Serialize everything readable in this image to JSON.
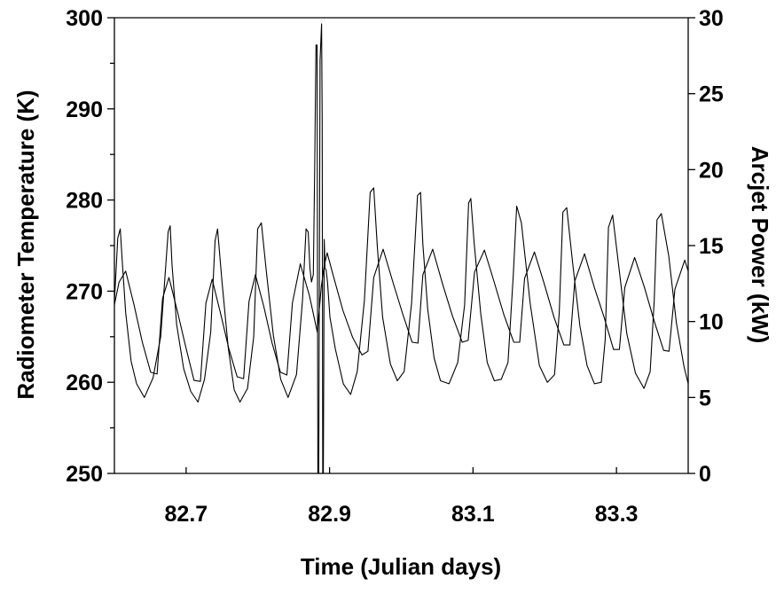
{
  "chart_data": {
    "type": "line",
    "title": "",
    "xlabel": "Time (Julian days)",
    "ylabel_left": "Radiometer Temperature (K)",
    "ylabel_right": "Arcjet Power (kW)",
    "xlim": [
      82.6,
      83.4
    ],
    "ylim_left": [
      250,
      300
    ],
    "ylim_right": [
      0,
      30
    ],
    "x_ticks": [
      82.7,
      82.9,
      83.1,
      83.3
    ],
    "x_tick_labels": [
      "82.7",
      "82.9",
      "83.1",
      "83.3"
    ],
    "y_left_ticks": [
      250,
      260,
      270,
      280,
      290,
      300
    ],
    "y_left_tick_labels": [
      "250",
      "260",
      "270",
      "280",
      "290",
      "300"
    ],
    "y_right_ticks": [
      0,
      5,
      10,
      15,
      20,
      25,
      30
    ],
    "y_right_tick_labels": [
      "0",
      "5",
      "10",
      "15",
      "20",
      "25",
      "30"
    ],
    "grid": false,
    "legend": "none",
    "colors": {
      "line": "#000000",
      "axes": "#000000",
      "background": "#ffffff"
    },
    "series": [
      {
        "axis": "left",
        "x": [
          82.6,
          82.6066,
          82.6157,
          82.6273,
          82.6389,
          82.6506,
          82.6595,
          82.6672,
          82.6761,
          82.6878,
          82.6994,
          82.711,
          82.7199,
          82.7276,
          82.7362,
          82.7479,
          82.7595,
          82.7711,
          82.7801,
          82.7877,
          82.7966,
          82.8083,
          82.8199,
          82.8315,
          82.8405,
          82.8481,
          82.8592,
          82.8719,
          82.8829,
          82.8885,
          82.8925,
          82.8966,
          82.9048,
          82.9185,
          82.9322,
          82.9452,
          82.9535,
          82.9616,
          82.9746,
          82.9883,
          83.002,
          83.0151,
          83.0233,
          83.0301,
          83.0438,
          83.0575,
          83.0712,
          83.0849,
          83.0932,
          83.1021,
          83.1158,
          83.1295,
          83.1431,
          83.1568,
          83.1651,
          83.1719,
          83.1856,
          83.1993,
          83.213,
          83.2267,
          83.235,
          83.2418,
          83.2555,
          83.2692,
          83.2829,
          83.2959,
          83.3041,
          83.3116,
          83.3253,
          83.339,
          83.3527,
          83.3658,
          83.3733,
          83.3815,
          83.3952,
          83.4
        ],
        "y": [
          268.5,
          271,
          272.2,
          268.5,
          264.4,
          261.1,
          260.9,
          269.2,
          271.5,
          267.8,
          263.9,
          260.2,
          260.1,
          268.7,
          271.3,
          267.6,
          263.7,
          260.6,
          260.4,
          268.9,
          271.8,
          268.3,
          264.3,
          261.1,
          260.8,
          268.7,
          273,
          269.5,
          265.5,
          270.5,
          272.8,
          274.2,
          271.8,
          267.9,
          264.9,
          263,
          263.4,
          271.5,
          274.6,
          271,
          267.5,
          264.4,
          264.3,
          271.8,
          274.6,
          270.8,
          267.3,
          264.4,
          264.6,
          272.1,
          274.5,
          271,
          267.4,
          264.4,
          264.4,
          271.4,
          274.3,
          270.8,
          267.1,
          264.1,
          264.1,
          271.1,
          274.1,
          270.4,
          267.1,
          263.6,
          263.6,
          270.4,
          273.7,
          270.4,
          266.7,
          263.5,
          263.4,
          270.2,
          273.4,
          272.2
        ]
      },
      {
        "axis": "right",
        "x": [
          82.6,
          82.6047,
          82.6082,
          82.6107,
          82.6157,
          82.6232,
          82.6309,
          82.6418,
          82.6539,
          82.6645,
          82.6749,
          82.6778,
          82.6804,
          82.6868,
          82.6966,
          82.7065,
          82.7165,
          82.7256,
          82.7343,
          82.7403,
          82.7438,
          82.7498,
          82.7586,
          82.7671,
          82.7751,
          82.7856,
          82.7942,
          82.7997,
          82.8049,
          82.8118,
          82.8216,
          82.8319,
          82.8421,
          82.8538,
          82.8623,
          82.8672,
          82.8702,
          82.8726,
          82.8747,
          82.8774,
          82.8792,
          82.8811,
          82.8825,
          82.8836,
          82.8849,
          82.8867,
          82.8888,
          82.8897,
          82.8904,
          82.8913,
          82.8926,
          82.8937,
          82.8951,
          82.8971,
          82.9005,
          82.908,
          82.9191,
          82.9294,
          82.9386,
          82.9486,
          82.9566,
          82.9616,
          82.9666,
          82.9739,
          82.9848,
          82.9944,
          83.0039,
          83.0144,
          83.0226,
          83.0268,
          83.0301,
          83.0369,
          83.0458,
          83.0547,
          83.0665,
          83.0787,
          83.0883,
          83.0938,
          83.097,
          83.1015,
          83.1108,
          83.1198,
          83.1297,
          83.1394,
          83.1488,
          83.1562,
          83.1609,
          83.1674,
          83.1796,
          83.1925,
          83.2037,
          83.2137,
          83.2202,
          83.2253,
          83.2306,
          83.2392,
          83.249,
          83.2591,
          83.2693,
          83.2788,
          83.2843,
          83.2888,
          83.2947,
          83.3038,
          83.3144,
          83.3264,
          83.3384,
          83.347,
          83.3526,
          83.3565,
          83.3625,
          83.3729,
          83.3836,
          83.3943,
          83.4
        ],
        "y": [
          11.3,
          15.5,
          16.1,
          14.1,
          10.6,
          7.4,
          5.9,
          5,
          6.3,
          9,
          15.9,
          16.3,
          13.7,
          9.8,
          6.9,
          5.4,
          4.7,
          6.2,
          9.3,
          15.3,
          16.1,
          12.7,
          8.3,
          5.5,
          4.7,
          5.6,
          9,
          16.1,
          16.5,
          13.3,
          9.1,
          6.2,
          5,
          6.5,
          11.4,
          16.1,
          15.9,
          13.5,
          12.6,
          13.1,
          19.9,
          28.2,
          28.2,
          0,
          0,
          27.2,
          29.6,
          23.3,
          0,
          0,
          15.4,
          13.5,
          13.4,
          12.6,
          10.3,
          8.2,
          5.9,
          5.2,
          6.7,
          11.4,
          18.5,
          18.8,
          14.9,
          10.3,
          7.2,
          6.1,
          6.7,
          11.2,
          18.3,
          18.5,
          15.1,
          10.8,
          7.6,
          6.1,
          5.9,
          7.3,
          11.1,
          17.8,
          18.1,
          15.2,
          10.5,
          7.3,
          6.1,
          6.2,
          7.3,
          13.1,
          17.6,
          16.5,
          11.2,
          7.1,
          6,
          6.5,
          10.6,
          17.2,
          17.5,
          13.7,
          9.7,
          7.1,
          5.9,
          6,
          8.8,
          16.2,
          17,
          13.4,
          9.2,
          6.6,
          5.6,
          6.7,
          11.4,
          16.7,
          17.1,
          14.3,
          9.9,
          7,
          5.9
        ]
      }
    ]
  }
}
